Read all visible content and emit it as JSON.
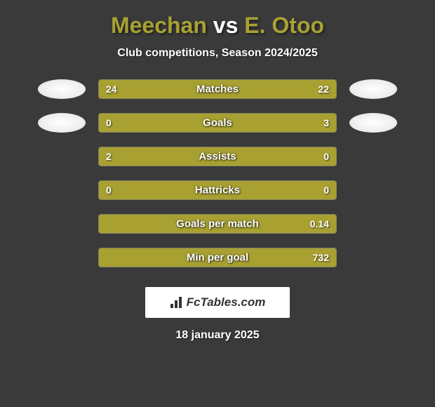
{
  "title": {
    "player1": "Meechan",
    "player1_color": "#a8a132",
    "vs": "vs",
    "player2": "E. Otoo",
    "player2_color": "#a8a132"
  },
  "subtitle": "Club competitions, Season 2024/2025",
  "colors": {
    "bar_left": "#a8a132",
    "bar_right": "#a8a132",
    "background": "#3a3a3a",
    "avatar": "#f5f5f5"
  },
  "stats": [
    {
      "label": "Matches",
      "left_value": "24",
      "right_value": "22",
      "left_pct": 52.2,
      "right_pct": 47.8,
      "show_avatars": true
    },
    {
      "label": "Goals",
      "left_value": "0",
      "right_value": "3",
      "left_pct": 18,
      "right_pct": 82,
      "show_avatars": true
    },
    {
      "label": "Assists",
      "left_value": "2",
      "right_value": "0",
      "left_pct": 77,
      "right_pct": 23,
      "show_avatars": false
    },
    {
      "label": "Hattricks",
      "left_value": "0",
      "right_value": "0",
      "left_pct": 50,
      "right_pct": 50,
      "show_avatars": false
    },
    {
      "label": "Goals per match",
      "left_value": "",
      "right_value": "0.14",
      "left_pct": 100,
      "right_pct": 0,
      "show_avatars": false,
      "full_left": true
    },
    {
      "label": "Min per goal",
      "left_value": "",
      "right_value": "732",
      "left_pct": 100,
      "right_pct": 0,
      "show_avatars": false,
      "full_left": true
    }
  ],
  "logo": {
    "text": "FcTables.com"
  },
  "date": "18 january 2025"
}
